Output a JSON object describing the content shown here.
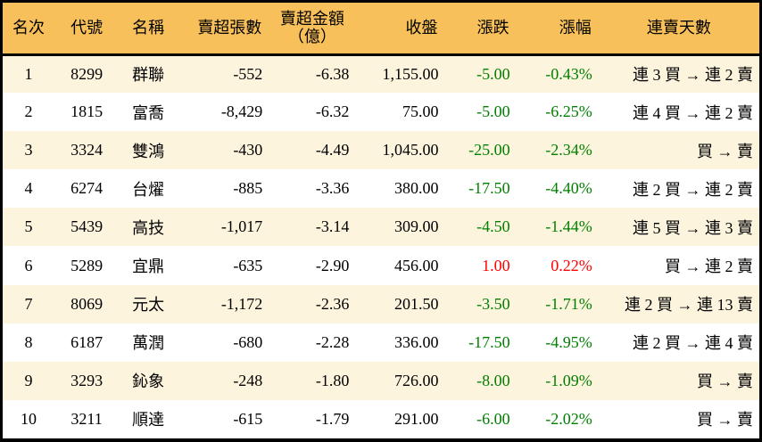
{
  "colors": {
    "header_bg": "#F7C05A",
    "stripe_bg": "#FDF4DE",
    "row_bg": "#FFFFFF",
    "border": "#000000",
    "text": "#000000",
    "down": "#008000",
    "up": "#FF0000"
  },
  "chart_data": {
    "type": "table",
    "columns": [
      {
        "key": "rank",
        "label": "名次"
      },
      {
        "key": "code",
        "label": "代號"
      },
      {
        "key": "name",
        "label": "名稱"
      },
      {
        "key": "volume",
        "label": "賣超張數"
      },
      {
        "key": "amount",
        "label": "賣超金額\n（億）"
      },
      {
        "key": "close",
        "label": "收盤"
      },
      {
        "key": "change",
        "label": "漲跌"
      },
      {
        "key": "pct",
        "label": "漲幅"
      },
      {
        "key": "streak",
        "label": "連賣天數"
      }
    ],
    "rows": [
      {
        "rank": "1",
        "code": "8299",
        "name": "群聯",
        "volume": "-552",
        "amount": "-6.38",
        "close": "1,155.00",
        "change": "-5.00",
        "pct": "-0.43%",
        "streak": "連 3 買 → 連 2 賣",
        "direction": "down"
      },
      {
        "rank": "2",
        "code": "1815",
        "name": "富喬",
        "volume": "-8,429",
        "amount": "-6.32",
        "close": "75.00",
        "change": "-5.00",
        "pct": "-6.25%",
        "streak": "連 4 買 → 連 2 賣",
        "direction": "down"
      },
      {
        "rank": "3",
        "code": "3324",
        "name": "雙鴻",
        "volume": "-430",
        "amount": "-4.49",
        "close": "1,045.00",
        "change": "-25.00",
        "pct": "-2.34%",
        "streak": "買 → 賣",
        "direction": "down"
      },
      {
        "rank": "4",
        "code": "6274",
        "name": "台燿",
        "volume": "-885",
        "amount": "-3.36",
        "close": "380.00",
        "change": "-17.50",
        "pct": "-4.40%",
        "streak": "連 2 買 → 連 2 賣",
        "direction": "down"
      },
      {
        "rank": "5",
        "code": "5439",
        "name": "高技",
        "volume": "-1,017",
        "amount": "-3.14",
        "close": "309.00",
        "change": "-4.50",
        "pct": "-1.44%",
        "streak": "連 5 買 → 連 3 賣",
        "direction": "down"
      },
      {
        "rank": "6",
        "code": "5289",
        "name": "宜鼎",
        "volume": "-635",
        "amount": "-2.90",
        "close": "456.00",
        "change": "1.00",
        "pct": "0.22%",
        "streak": "買 → 連 2 賣",
        "direction": "up"
      },
      {
        "rank": "7",
        "code": "8069",
        "name": "元太",
        "volume": "-1,172",
        "amount": "-2.36",
        "close": "201.50",
        "change": "-3.50",
        "pct": "-1.71%",
        "streak": "連 2 買 → 連 13 賣",
        "direction": "down"
      },
      {
        "rank": "8",
        "code": "6187",
        "name": "萬潤",
        "volume": "-680",
        "amount": "-2.28",
        "close": "336.00",
        "change": "-17.50",
        "pct": "-4.95%",
        "streak": "連 2 買 → 連 4 賣",
        "direction": "down"
      },
      {
        "rank": "9",
        "code": "3293",
        "name": "鈊象",
        "volume": "-248",
        "amount": "-1.80",
        "close": "726.00",
        "change": "-8.00",
        "pct": "-1.09%",
        "streak": "買 → 賣",
        "direction": "down"
      },
      {
        "rank": "10",
        "code": "3211",
        "name": "順達",
        "volume": "-615",
        "amount": "-1.79",
        "close": "291.00",
        "change": "-6.00",
        "pct": "-2.02%",
        "streak": "買 → 賣",
        "direction": "down"
      }
    ]
  }
}
